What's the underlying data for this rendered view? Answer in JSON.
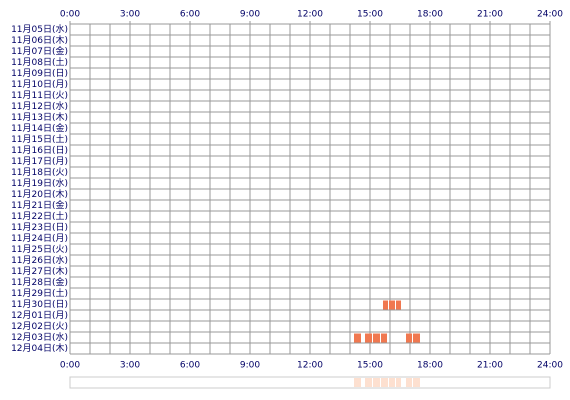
{
  "chart_data": {
    "type": "timeline",
    "categories": [
      "11月05日(水)",
      "11月06日(木)",
      "11月07日(金)",
      "11月08日(土)",
      "11月09日(日)",
      "11月10日(月)",
      "11月11日(火)",
      "11月12日(水)",
      "11月13日(木)",
      "11月14日(金)",
      "11月15日(土)",
      "11月16日(日)",
      "11月17日(月)",
      "11月18日(火)",
      "11月19日(水)",
      "11月20日(木)",
      "11月21日(金)",
      "11月22日(土)",
      "11月23日(日)",
      "11月24日(月)",
      "11月25日(火)",
      "11月26日(水)",
      "11月27日(木)",
      "11月28日(金)",
      "11月29日(土)",
      "11月30日(日)",
      "12月01日(月)",
      "12月02日(火)",
      "12月03日(水)",
      "12月04日(木)"
    ],
    "intervals": [
      {
        "category": "11月30日(日)",
        "start": 15.65,
        "end": 15.9
      },
      {
        "category": "11月30日(日)",
        "start": 15.95,
        "end": 16.25
      },
      {
        "category": "11月30日(日)",
        "start": 16.3,
        "end": 16.55
      },
      {
        "category": "12月03日(水)",
        "start": 14.2,
        "end": 14.55
      },
      {
        "category": "12月03日(水)",
        "start": 14.75,
        "end": 15.1
      },
      {
        "category": "12月03日(水)",
        "start": 15.15,
        "end": 15.5
      },
      {
        "category": "12月03日(水)",
        "start": 15.55,
        "end": 15.85
      },
      {
        "category": "12月03日(水)",
        "start": 16.8,
        "end": 17.1
      },
      {
        "category": "12月03日(水)",
        "start": 17.15,
        "end": 17.5
      }
    ],
    "color": "#f07850",
    "summary_color": "#fde0d0",
    "xlim": [
      0,
      24
    ],
    "xticks": [
      {
        "value": 0,
        "label": "0:00"
      },
      {
        "value": 3,
        "label": "3:00"
      },
      {
        "value": 6,
        "label": "6:00"
      },
      {
        "value": 9,
        "label": "9:00"
      },
      {
        "value": 12,
        "label": "12:00"
      },
      {
        "value": 15,
        "label": "15:00"
      },
      {
        "value": 18,
        "label": "18:00"
      },
      {
        "value": 21,
        "label": "21:00"
      },
      {
        "value": 24,
        "label": "24:00"
      }
    ],
    "grid_step": 1
  }
}
